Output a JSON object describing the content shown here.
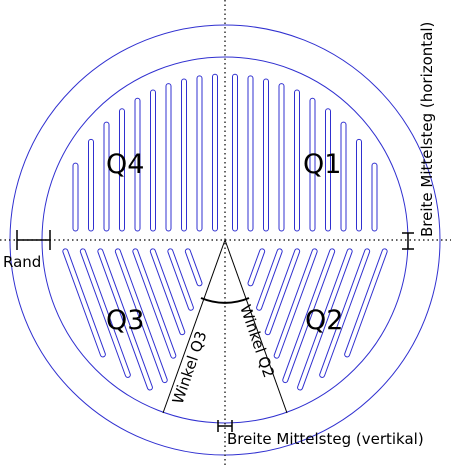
{
  "labels": {
    "q1": "Q1",
    "q2": "Q2",
    "q3": "Q3",
    "q4": "Q4",
    "rand": "Rand",
    "winkel_q2": "Winkel Q2",
    "winkel_q3": "Winkel Q3",
    "breite_h": "Breite Mittelsteg (horizontal)",
    "breite_v": "Breite Mittelsteg (vertikal)"
  },
  "colors": {
    "outline": "#3030d0",
    "dimension": "#000000",
    "axis": "#000000"
  }
}
